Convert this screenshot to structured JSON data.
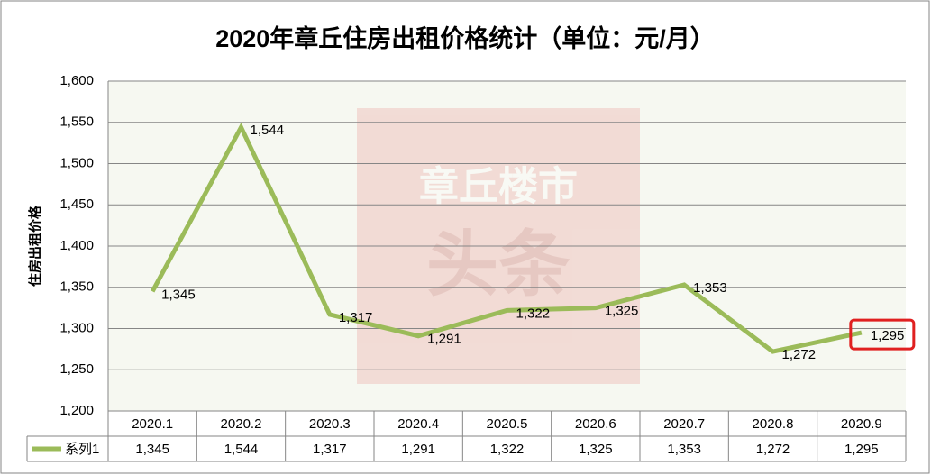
{
  "chart_data": {
    "type": "line",
    "title": "2020年章丘住房出租价格统计（单位：元/月）",
    "y_label": "住房出租价格",
    "watermark": [
      "章丘楼市",
      "头条"
    ],
    "categories": [
      "2020.1",
      "2020.2",
      "2020.3",
      "2020.4",
      "2020.5",
      "2020.6",
      "2020.7",
      "2020.8",
      "2020.9"
    ],
    "series": [
      {
        "name": "系列1",
        "color": "#9bbb59",
        "values": [
          1345,
          1544,
          1317,
          1291,
          1322,
          1325,
          1353,
          1272,
          1295
        ],
        "value_labels": [
          "1,345",
          "1,544",
          "1,317",
          "1,291",
          "1,322",
          "1,325",
          "1,353",
          "1,272",
          "1,295"
        ]
      }
    ],
    "ylim": [
      1200,
      1600
    ],
    "yticks": [
      {
        "value": 1200,
        "label": "1,200"
      },
      {
        "value": 1250,
        "label": "1,250"
      },
      {
        "value": 1300,
        "label": "1,300"
      },
      {
        "value": 1350,
        "label": "1,350"
      },
      {
        "value": 1400,
        "label": "1,400"
      },
      {
        "value": 1450,
        "label": "1,450"
      },
      {
        "value": 1500,
        "label": "1,500"
      },
      {
        "value": 1550,
        "label": "1,550"
      },
      {
        "value": 1600,
        "label": "1,600"
      }
    ],
    "grid": true
  }
}
